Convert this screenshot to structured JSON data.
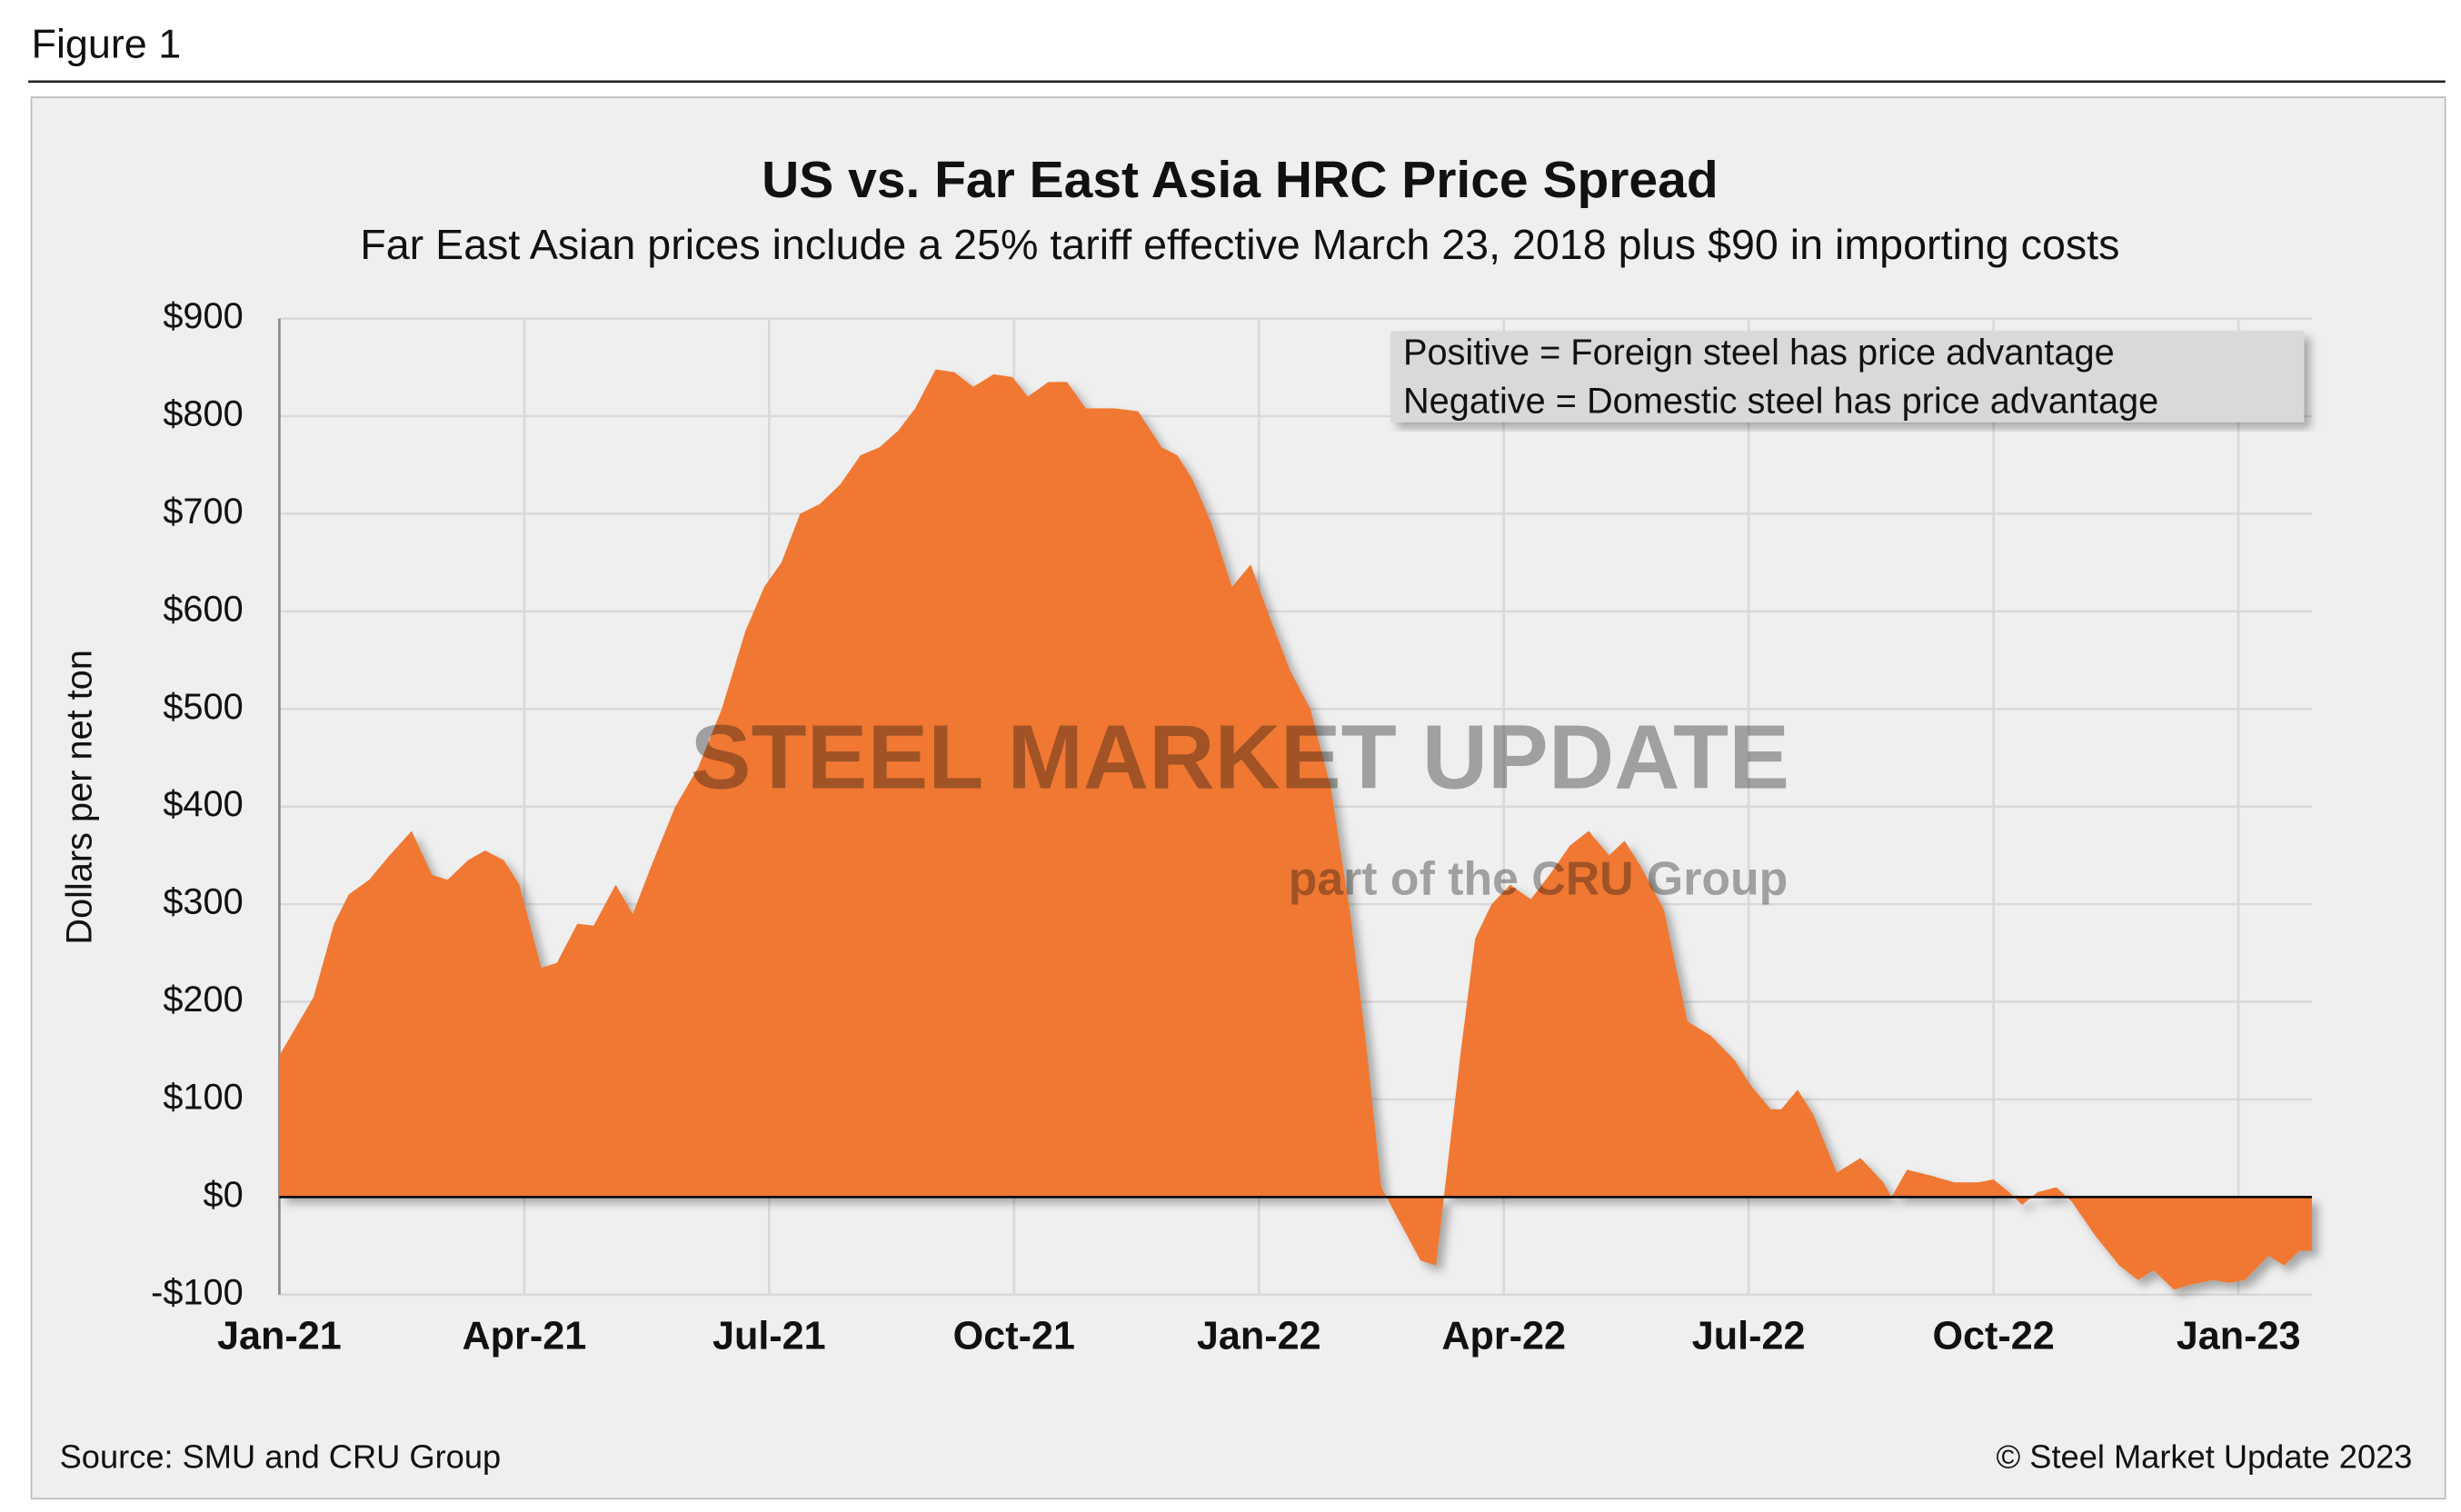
{
  "figure_label": "Figure 1",
  "chart_data": {
    "type": "area",
    "title": "US vs. Far East Asia HRC Price Spread",
    "subtitle": "Far East Asian prices include a 25% tariff effective March 23, 2018 plus $90 in importing costs",
    "y_label": "Dollars per net ton",
    "annotations": [
      "Positive = Foreign steel has price advantage",
      "Negative = Domestic steel has price advantage"
    ],
    "watermark": [
      "STEEL MARKET UPDATE",
      "part of the CRU Group"
    ],
    "source": "Source: SMU and CRU Group",
    "copyright": "© Steel Market Update 2023",
    "color": "#f07830",
    "grid": true,
    "x": [
      0,
      0.42,
      0.67,
      0.85,
      1.1,
      1.35,
      1.62,
      1.87,
      2.06,
      2.31,
      2.52,
      2.75,
      2.94,
      3.21,
      3.4,
      3.65,
      3.85,
      4.12,
      4.33,
      4.56,
      4.85,
      5.13,
      5.42,
      5.71,
      5.94,
      6.15,
      6.38,
      6.62,
      6.87,
      7.12,
      7.35,
      7.58,
      7.79,
      8.04,
      8.27,
      8.5,
      8.75,
      8.98,
      9.17,
      9.42,
      9.65,
      9.88,
      10.23,
      10.52,
      10.81,
      11.0,
      11.19,
      11.42,
      11.67,
      11.9,
      12.15,
      12.38,
      12.63,
      12.88,
      13.12,
      13.31,
      13.5,
      13.69,
      13.98,
      14.17,
      14.46,
      14.65,
      14.85,
      15.08,
      15.33,
      15.56,
      15.81,
      16.04,
      16.29,
      16.48,
      16.67,
      16.96,
      17.25,
      17.54,
      17.83,
      18.02,
      18.27,
      18.4,
      18.6,
      18.79,
      19.08,
      19.37,
      19.65,
      19.75,
      19.94,
      20.23,
      20.52,
      20.81,
      21.0,
      21.19,
      21.35,
      21.54,
      21.77,
      21.96,
      22.25,
      22.54,
      22.77,
      22.96,
      23.21,
      23.4,
      23.69,
      23.88,
      24.08,
      24.37,
      24.56,
      24.75,
      24.9
    ],
    "values": [
      145,
      205,
      280,
      310,
      325,
      350,
      375,
      330,
      325,
      345,
      355,
      345,
      320,
      235,
      240,
      280,
      278,
      320,
      290,
      340,
      400,
      440,
      500,
      580,
      625,
      650,
      700,
      710,
      730,
      760,
      768,
      785,
      808,
      848,
      845,
      830,
      843,
      840,
      820,
      835,
      835,
      808,
      808,
      805,
      768,
      760,
      735,
      690,
      625,
      648,
      590,
      540,
      500,
      420,
      290,
      160,
      10,
      -20,
      -65,
      -70,
      140,
      265,
      300,
      320,
      305,
      330,
      360,
      375,
      350,
      365,
      340,
      295,
      180,
      165,
      140,
      115,
      90,
      90,
      110,
      85,
      25,
      40,
      15,
      0,
      28,
      22,
      15,
      15,
      18,
      5,
      -8,
      5,
      10,
      -5,
      -40,
      -70,
      -85,
      -75,
      -95,
      -90,
      -85,
      -88,
      -85,
      -60,
      -70,
      -55,
      -55
    ],
    "xlim": [
      0,
      24.9
    ],
    "xticks": [
      {
        "value": 0,
        "label": "Jan-21"
      },
      {
        "value": 3,
        "label": "Apr-21"
      },
      {
        "value": 6,
        "label": "Jul-21"
      },
      {
        "value": 9,
        "label": "Oct-21"
      },
      {
        "value": 12,
        "label": "Jan-22"
      },
      {
        "value": 15,
        "label": "Apr-22"
      },
      {
        "value": 18,
        "label": "Jul-22"
      },
      {
        "value": 21,
        "label": "Oct-22"
      },
      {
        "value": 24,
        "label": "Jan-23"
      }
    ],
    "ylim": [
      -100,
      900
    ],
    "yticks": [
      {
        "value": -100,
        "label": "-$100"
      },
      {
        "value": 0,
        "label": "$0"
      },
      {
        "value": 100,
        "label": "$100"
      },
      {
        "value": 200,
        "label": "$200"
      },
      {
        "value": 300,
        "label": "$300"
      },
      {
        "value": 400,
        "label": "$400"
      },
      {
        "value": 500,
        "label": "$500"
      },
      {
        "value": 600,
        "label": "$600"
      },
      {
        "value": 700,
        "label": "$700"
      },
      {
        "value": 800,
        "label": "$800"
      },
      {
        "value": 900,
        "label": "$900"
      }
    ]
  }
}
